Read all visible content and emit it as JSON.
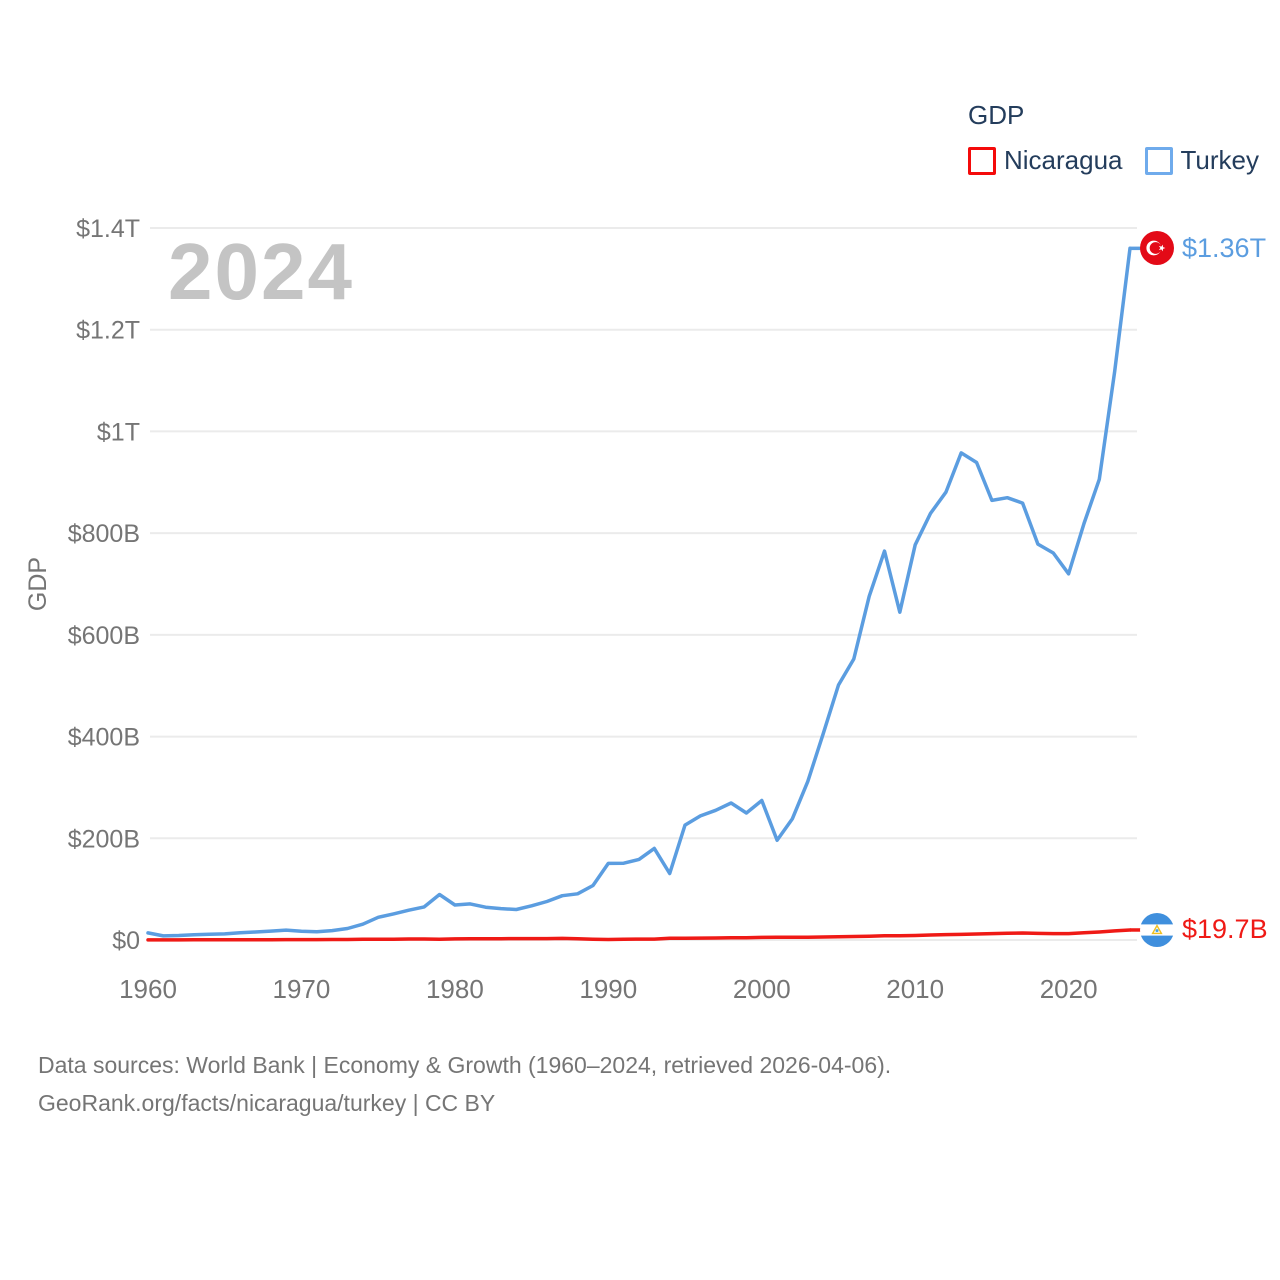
{
  "legend": {
    "title": "GDP",
    "items": [
      {
        "label": "Nicaragua",
        "color": "#f40b0b"
      },
      {
        "label": "Turkey",
        "color": "#6fabec"
      }
    ]
  },
  "watermark": "2024",
  "chart_data": {
    "type": "line",
    "title": "GDP",
    "ylabel": "GDP",
    "y_unit": "billions of USD",
    "ylim": [
      0,
      1400
    ],
    "x_start": 1960,
    "x_end": 2024,
    "x_ticks": [
      1960,
      1970,
      1980,
      1990,
      2000,
      2010,
      2020
    ],
    "y_ticks": [
      {
        "value": 0,
        "label": "$0"
      },
      {
        "value": 200,
        "label": "$200B"
      },
      {
        "value": 400,
        "label": "$400B"
      },
      {
        "value": 600,
        "label": "$600B"
      },
      {
        "value": 800,
        "label": "$800B"
      },
      {
        "value": 1000,
        "label": "$1T"
      },
      {
        "value": 1200,
        "label": "$1.2T"
      },
      {
        "value": 1400,
        "label": "$1.4T"
      }
    ],
    "grid": true,
    "legend_position": "top-right",
    "series": [
      {
        "name": "Nicaragua",
        "color": "#ef1a16",
        "end_label": "$19.7B",
        "values": [
          0.23,
          0.25,
          0.28,
          0.32,
          0.37,
          0.57,
          0.61,
          0.64,
          0.68,
          0.71,
          0.78,
          0.84,
          0.89,
          1.03,
          1.33,
          1.51,
          1.65,
          2.03,
          1.98,
          1.58,
          2.14,
          2.46,
          2.44,
          2.6,
          2.73,
          2.74,
          2.8,
          3.21,
          2.63,
          1.65,
          1.0,
          1.46,
          1.79,
          1.76,
          3.29,
          3.61,
          3.82,
          4.03,
          4.29,
          4.6,
          5.11,
          5.32,
          5.35,
          5.46,
          5.9,
          6.32,
          6.79,
          7.42,
          8.5,
          8.3,
          8.76,
          9.77,
          10.53,
          10.98,
          11.88,
          12.61,
          13.23,
          13.79,
          13.06,
          12.6,
          12.62,
          14.16,
          15.67,
          17.83,
          19.7
        ]
      },
      {
        "name": "Turkey",
        "color": "#5b9de0",
        "end_label": "$1.36T",
        "values": [
          14.0,
          7.99,
          8.92,
          10.36,
          11.18,
          11.95,
          14.12,
          15.66,
          17.5,
          19.47,
          17.09,
          16.23,
          18.43,
          22.59,
          31.06,
          44.63,
          51.28,
          58.68,
          65.15,
          89.39,
          68.79,
          71.04,
          64.55,
          61.68,
          59.99,
          67.23,
          75.73,
          87.17,
          90.85,
          107.14,
          150.68,
          151.04,
          158.46,
          180.17,
          130.69,
          225.94,
          243.98,
          255.08,
          269.29,
          249.75,
          274.3,
          196.0,
          238.43,
          311.82,
          404.79,
          501.42,
          552.49,
          675.77,
          764.64,
          644.64,
          776.99,
          838.79,
          880.56,
          957.78,
          938.93,
          864.31,
          869.68,
          858.99,
          778.48,
          761.0,
          720.1,
          819.04,
          905.84,
          1118.25,
          1360.0
        ]
      }
    ]
  },
  "footer": {
    "line1": "Data sources: World Bank | Economy & Growth (1960–2024, retrieved 2026-04-06).",
    "line2": "GeoRank.org/facts/nicaragua/turkey | CC BY"
  }
}
